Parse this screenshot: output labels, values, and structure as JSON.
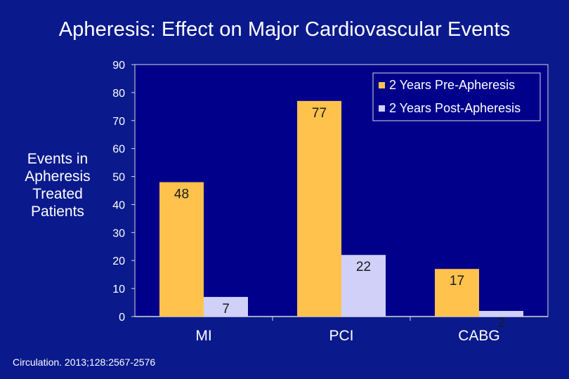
{
  "slide": {
    "title": "Apheresis: Effect on Major Cardiovascular Events",
    "citation": "Circulation. 2013;128:2567-2576"
  },
  "colors": {
    "background": "#0a1a8c",
    "plot_area": "#00008b",
    "pre": "#ffc34d",
    "post": "#d0d0f8",
    "axis": "#d8d8d8"
  },
  "chart_data": {
    "type": "bar",
    "title": "",
    "ylabel_lines": [
      "Events in",
      "Apheresis",
      "Treated",
      "Patients"
    ],
    "xlabel": "",
    "categories": [
      "MI",
      "PCI",
      "CABG"
    ],
    "series": [
      {
        "name": "2 Years Pre-Apheresis",
        "values": [
          48,
          77,
          17
        ],
        "color": "#ffc34d"
      },
      {
        "name": "2 Years Post-Apheresis",
        "values": [
          7,
          22,
          2
        ],
        "color": "#d0d0f8"
      }
    ],
    "ylim": [
      0,
      90
    ],
    "yticks": [
      "0",
      "10",
      "20",
      "30",
      "40",
      "50",
      "60",
      "70",
      "80",
      "90"
    ],
    "grid": false,
    "legend": "top-right",
    "data_labels": true
  }
}
